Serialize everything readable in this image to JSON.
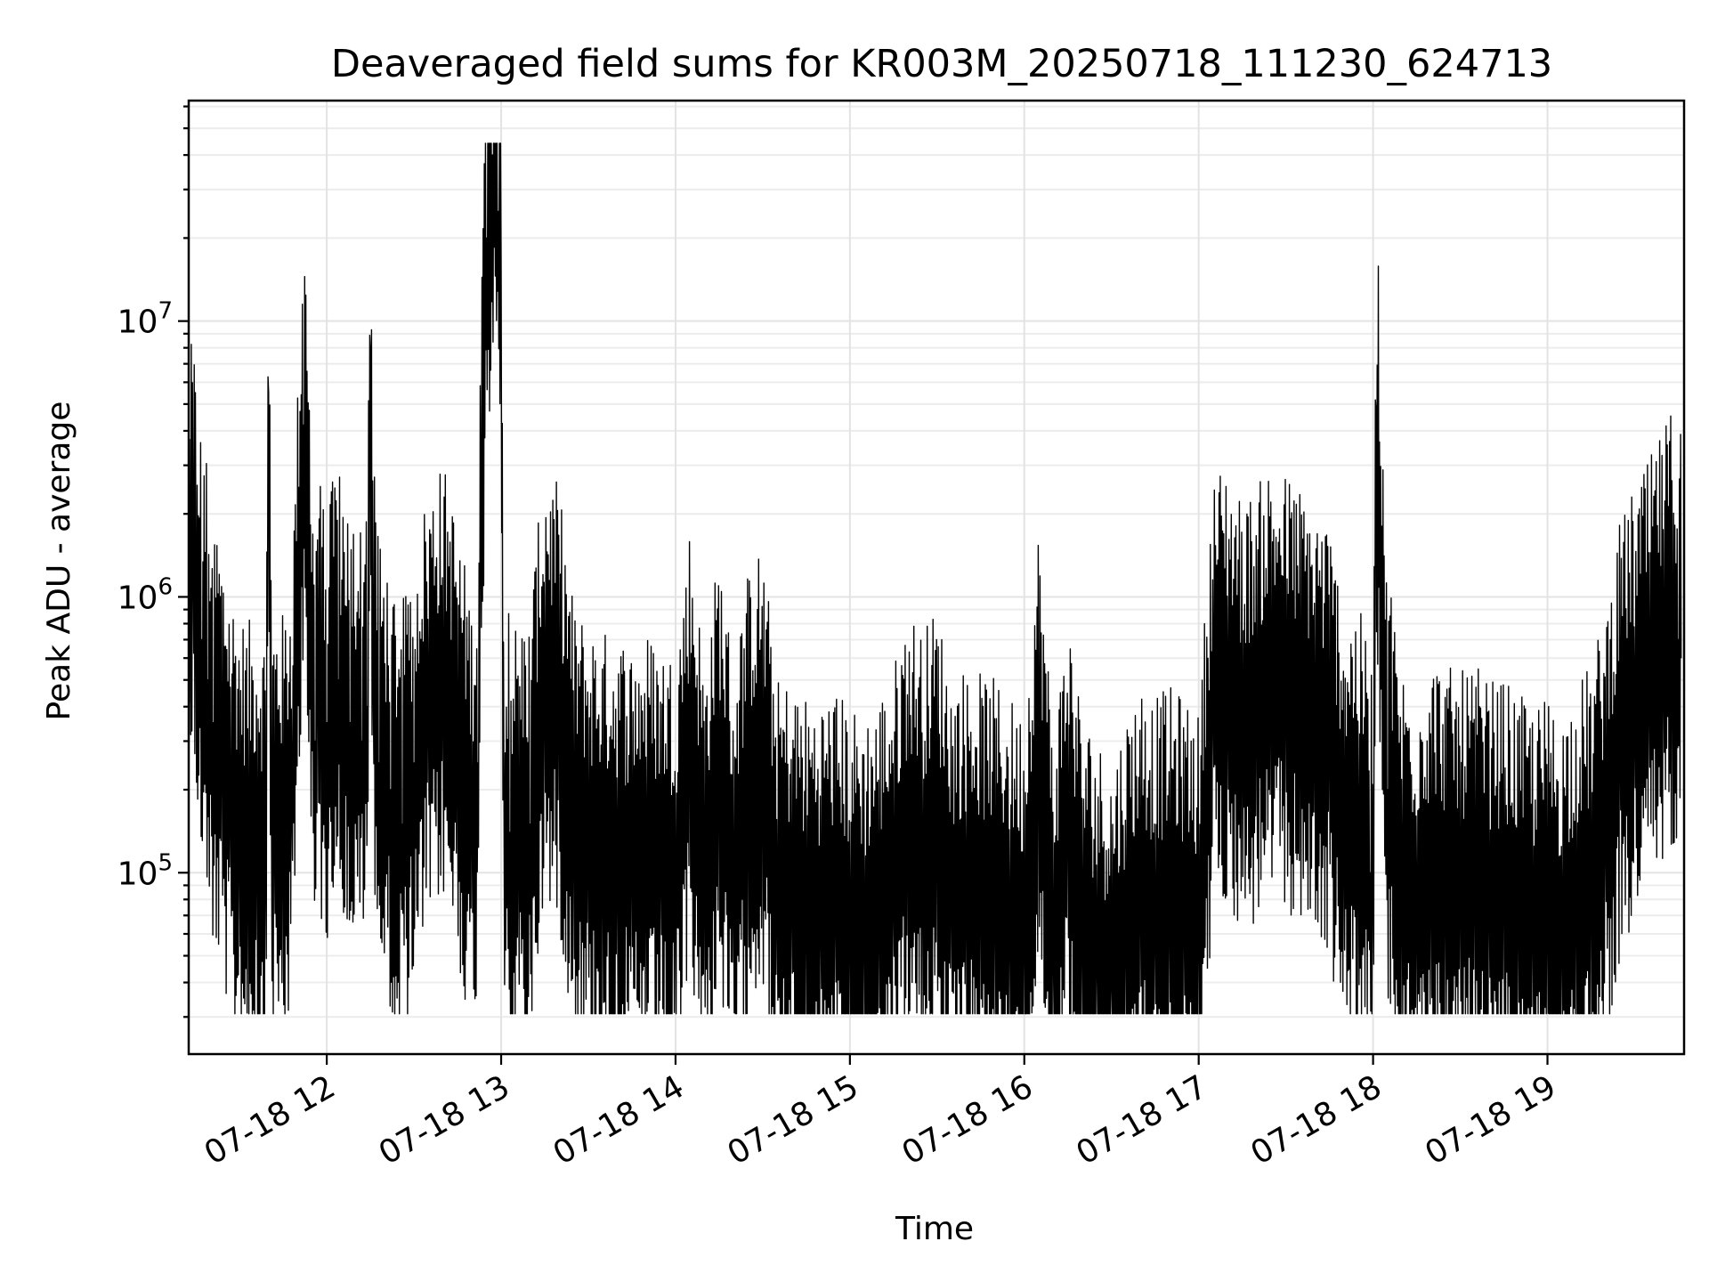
{
  "chart_data": {
    "type": "line",
    "title": "Deaveraged field sums for KR003M_20250718_111230_624713",
    "xlabel": "Time",
    "ylabel": "Peak ADU - average",
    "yscale": "log",
    "grid": true,
    "legend": "none",
    "line_color": "#000000",
    "xlim": [
      "2025-07-18 11:12:30",
      "2025-07-18 19:47:00"
    ],
    "ylim": [
      22000,
      63000000
    ],
    "x_ticks": [
      {
        "value": "2025-07-18 12:00",
        "label": "07-18 12"
      },
      {
        "value": "2025-07-18 13:00",
        "label": "07-18 13"
      },
      {
        "value": "2025-07-18 14:00",
        "label": "07-18 14"
      },
      {
        "value": "2025-07-18 15:00",
        "label": "07-18 15"
      },
      {
        "value": "2025-07-18 16:00",
        "label": "07-18 16"
      },
      {
        "value": "2025-07-18 17:00",
        "label": "07-18 17"
      },
      {
        "value": "2025-07-18 18:00",
        "label": "07-18 18"
      },
      {
        "value": "2025-07-18 19:00",
        "label": "07-18 19"
      }
    ],
    "y_ticks": [
      {
        "value": 100000,
        "base": "10",
        "exp": "5"
      },
      {
        "value": 1000000,
        "base": "10",
        "exp": "6"
      },
      {
        "value": 10000000,
        "base": "10",
        "exp": "7"
      }
    ],
    "series": [
      {
        "x": [
          "11:12:30",
          "11:13",
          "11:14",
          "11:15",
          "11:17",
          "11:19",
          "11:21",
          "11:24",
          "11:27",
          "11:30",
          "11:33",
          "11:36",
          "11:39",
          "11:40",
          "11:41",
          "11:42",
          "11:45",
          "11:48",
          "11:52",
          "11:56",
          "11:57",
          "11:58",
          "12:00",
          "12:04",
          "12:08",
          "12:12",
          "12:14",
          "12:15",
          "12:16",
          "12:18",
          "12:22",
          "12:26",
          "12:30",
          "12:35",
          "12:40",
          "12:45",
          "12:50",
          "12:52",
          "12:53",
          "12:55",
          "12:57",
          "12:59",
          "13:00",
          "13:01",
          "13:03",
          "13:06",
          "13:10",
          "13:15",
          "13:20",
          "13:25",
          "13:30",
          "13:35",
          "13:40",
          "13:45",
          "13:50",
          "13:55",
          "14:00",
          "14:05",
          "14:10",
          "14:15",
          "14:20",
          "14:25",
          "14:30",
          "14:35",
          "14:40",
          "14:45",
          "14:50",
          "14:55",
          "15:00",
          "15:05",
          "15:10",
          "15:15",
          "15:20",
          "15:25",
          "15:30",
          "15:35",
          "15:40",
          "15:45",
          "15:50",
          "15:55",
          "16:00",
          "16:05",
          "16:10",
          "16:15",
          "16:20",
          "16:25",
          "16:30",
          "16:35",
          "16:40",
          "16:45",
          "16:50",
          "16:55",
          "17:00",
          "17:05",
          "17:10",
          "17:15",
          "17:20",
          "17:25",
          "17:30",
          "17:35",
          "17:40",
          "17:45",
          "17:50",
          "17:55",
          "17:59",
          "18:00",
          "18:01",
          "18:05",
          "18:10",
          "18:15",
          "18:20",
          "18:25",
          "18:30",
          "18:35",
          "18:40",
          "18:45",
          "18:50",
          "18:55",
          "19:00",
          "19:05",
          "19:10",
          "19:15",
          "19:20",
          "19:25",
          "19:30",
          "19:35",
          "19:40",
          "19:43",
          "19:45",
          "19:46"
        ],
        "y": [
          2000000,
          1200000,
          1500000,
          1000000,
          700000,
          500000,
          350000,
          250000,
          180000,
          140000,
          130000,
          140000,
          120000,
          5500000,
          130000,
          150000,
          140000,
          200000,
          4200000,
          300000,
          600000,
          400000,
          350000,
          500000,
          350000,
          300000,
          400000,
          7800000,
          500000,
          250000,
          200000,
          150000,
          250000,
          400000,
          500000,
          300000,
          150000,
          250000,
          2000000,
          20000000,
          40000000,
          25000000,
          15000000,
          150000,
          140000,
          130000,
          150000,
          500000,
          400000,
          150000,
          130000,
          120000,
          120000,
          110000,
          120000,
          110000,
          100000,
          300000,
          90000,
          250000,
          90000,
          200000,
          250000,
          80000,
          80000,
          70000,
          70000,
          75000,
          65000,
          60000,
          70000,
          90000,
          150000,
          120000,
          150000,
          80000,
          90000,
          85000,
          80000,
          70000,
          60000,
          300000,
          50000,
          150000,
          60000,
          50000,
          40000,
          60000,
          80000,
          70000,
          75000,
          70000,
          60000,
          450000,
          500000,
          350000,
          400000,
          500000,
          450000,
          400000,
          350000,
          300000,
          150000,
          150000,
          100000,
          100000,
          4800000,
          200000,
          90000,
          80000,
          100000,
          90000,
          85000,
          90000,
          80000,
          80000,
          70000,
          65000,
          70000,
          60000,
          80000,
          90000,
          150000,
          300000,
          400000,
          500000,
          650000,
          800000,
          700000,
          600000
        ]
      }
    ]
  }
}
